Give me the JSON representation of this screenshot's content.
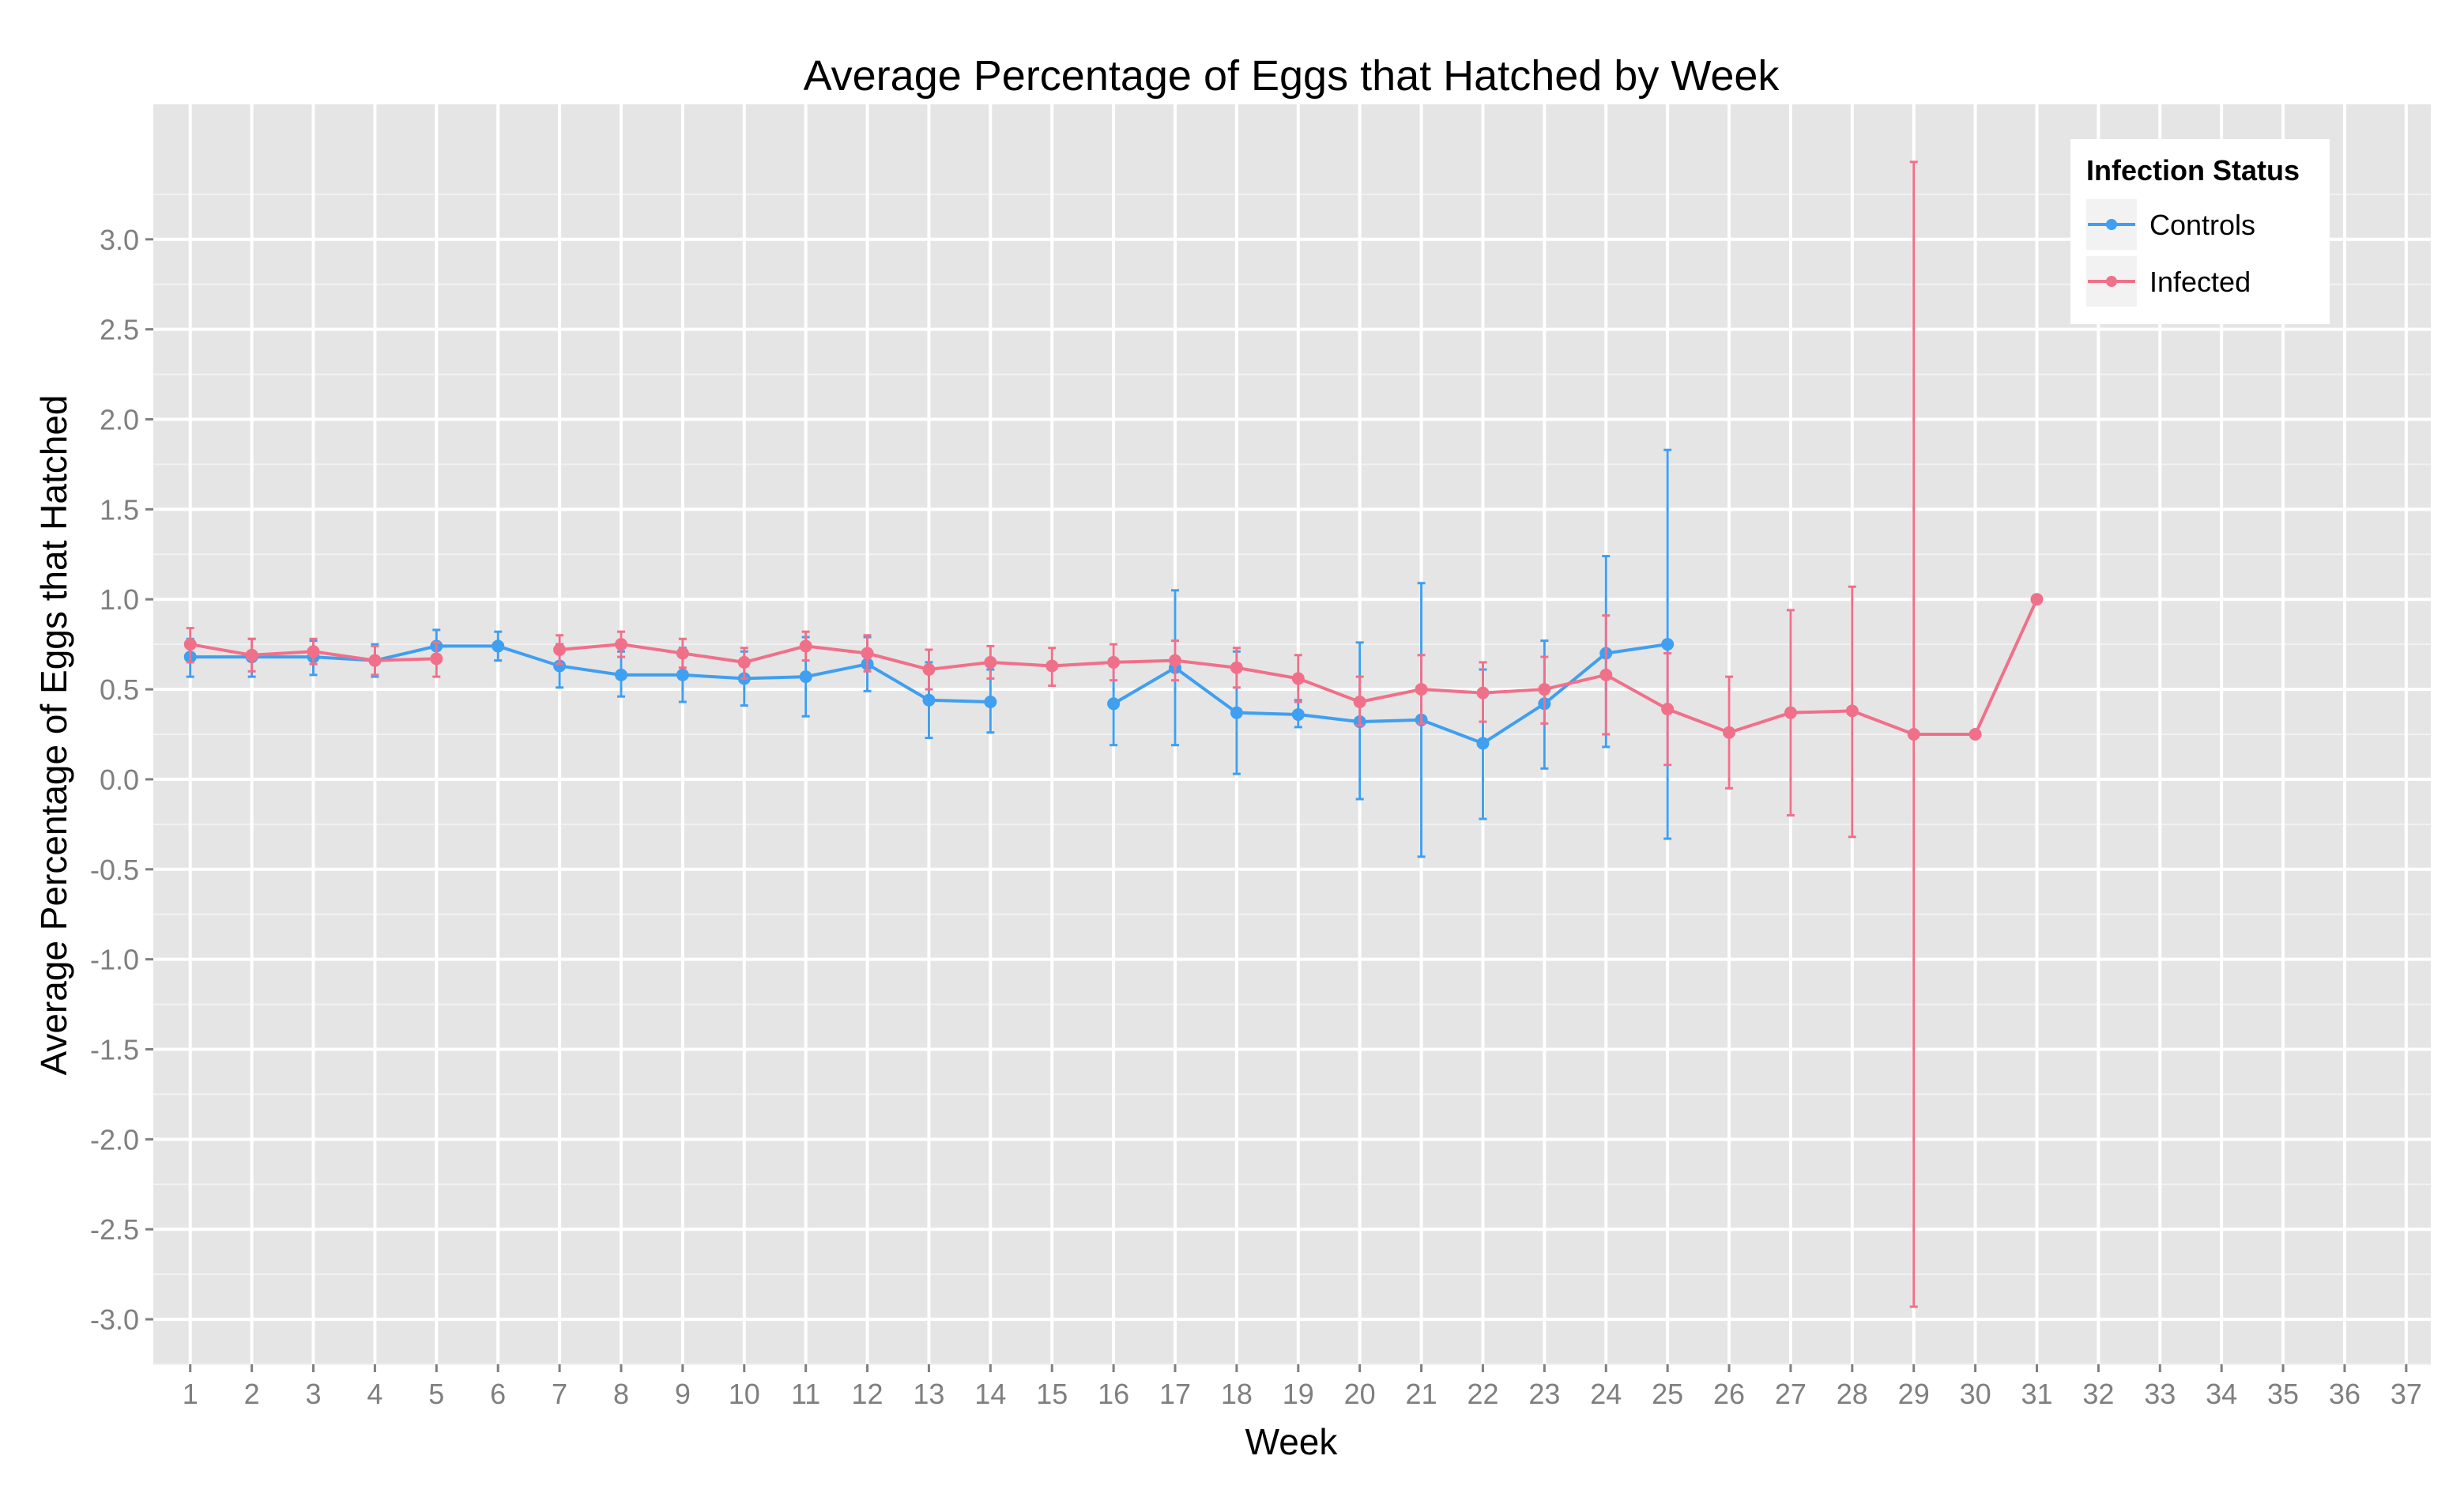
{
  "chart_data": {
    "type": "line",
    "title": "Average Percentage of Eggs that Hatched by Week",
    "xlabel": "Week",
    "ylabel": "Average Percentage of Eggs that Hatched",
    "x_ticks": [
      1,
      2,
      3,
      4,
      5,
      6,
      7,
      8,
      9,
      10,
      11,
      12,
      13,
      14,
      15,
      16,
      17,
      18,
      19,
      20,
      21,
      22,
      23,
      24,
      25,
      26,
      27,
      28,
      29,
      30,
      31,
      32,
      33,
      34,
      35,
      36,
      37
    ],
    "y_ticks": [
      -3.0,
      -2.5,
      -2.0,
      -1.5,
      -1.0,
      -0.5,
      0.0,
      0.5,
      1.0,
      1.5,
      2.0,
      2.5,
      3.0
    ],
    "y_tick_labels": [
      "-3.0",
      "-2.5",
      "-2.0",
      "-1.5",
      "-1.0",
      "-0.5",
      "0.0",
      "0.5",
      "1.0",
      "1.5",
      "2.0",
      "2.5",
      "3.0"
    ],
    "xlim": [
      0.4,
      37.4
    ],
    "ylim": [
      -3.25,
      3.75
    ],
    "grid": true,
    "legend": {
      "title": "Infection Status",
      "placement": "top-right",
      "entries": [
        "Controls",
        "Infected"
      ]
    },
    "colors": {
      "panel_background": "#e5e5e5",
      "grid": "#ffffff",
      "Controls": "#3f9ff0",
      "Infected": "#f0708a"
    },
    "series": [
      {
        "name": "Controls",
        "color": "#3f9ff0",
        "segments": [
          [
            {
              "x": 1,
              "y": 0.68,
              "lo": 0.57,
              "hi": 0.78
            },
            {
              "x": 2,
              "y": 0.68,
              "lo": 0.57,
              "hi": 0.78
            },
            {
              "x": 3,
              "y": 0.68,
              "lo": 0.58,
              "hi": 0.77
            },
            {
              "x": 4,
              "y": 0.66,
              "lo": 0.57,
              "hi": 0.75
            },
            {
              "x": 5,
              "y": 0.74,
              "lo": 0.65,
              "hi": 0.83
            },
            {
              "x": 6,
              "y": 0.74,
              "lo": 0.66,
              "hi": 0.82
            },
            {
              "x": 7,
              "y": 0.63,
              "lo": 0.51,
              "hi": 0.75
            },
            {
              "x": 8,
              "y": 0.58,
              "lo": 0.46,
              "hi": 0.71
            },
            {
              "x": 9,
              "y": 0.58,
              "lo": 0.43,
              "hi": 0.73
            },
            {
              "x": 10,
              "y": 0.56,
              "lo": 0.41,
              "hi": 0.71
            },
            {
              "x": 11,
              "y": 0.57,
              "lo": 0.35,
              "hi": 0.79
            },
            {
              "x": 12,
              "y": 0.64,
              "lo": 0.49,
              "hi": 0.79
            },
            {
              "x": 13,
              "y": 0.44,
              "lo": 0.23,
              "hi": 0.65
            },
            {
              "x": 14,
              "y": 0.43,
              "lo": 0.26,
              "hi": 0.61
            }
          ],
          [
            {
              "x": 16,
              "y": 0.42,
              "lo": 0.19,
              "hi": 0.66
            },
            {
              "x": 17,
              "y": 0.62,
              "lo": 0.19,
              "hi": 1.05
            },
            {
              "x": 18,
              "y": 0.37,
              "lo": 0.03,
              "hi": 0.71
            },
            {
              "x": 19,
              "y": 0.36,
              "lo": 0.29,
              "hi": 0.44
            },
            {
              "x": 20,
              "y": 0.32,
              "lo": -0.11,
              "hi": 0.76
            },
            {
              "x": 21,
              "y": 0.33,
              "lo": -0.43,
              "hi": 1.09
            },
            {
              "x": 22,
              "y": 0.2,
              "lo": -0.22,
              "hi": 0.61
            },
            {
              "x": 23,
              "y": 0.42,
              "lo": 0.06,
              "hi": 0.77
            },
            {
              "x": 24,
              "y": 0.7,
              "lo": 0.18,
              "hi": 1.24
            },
            {
              "x": 25,
              "y": 0.75,
              "lo": -0.33,
              "hi": 1.83
            }
          ]
        ]
      },
      {
        "name": "Infected",
        "color": "#f0708a",
        "segments": [
          [
            {
              "x": 1,
              "y": 0.75,
              "lo": 0.65,
              "hi": 0.84
            },
            {
              "x": 2,
              "y": 0.69,
              "lo": 0.6,
              "hi": 0.78
            },
            {
              "x": 3,
              "y": 0.71,
              "lo": 0.64,
              "hi": 0.78
            },
            {
              "x": 4,
              "y": 0.66,
              "lo": 0.58,
              "hi": 0.74
            },
            {
              "x": 5,
              "y": 0.67,
              "lo": 0.57,
              "hi": 0.76
            }
          ],
          [
            {
              "x": 7,
              "y": 0.72,
              "lo": 0.64,
              "hi": 0.8
            },
            {
              "x": 8,
              "y": 0.75,
              "lo": 0.68,
              "hi": 0.82
            },
            {
              "x": 9,
              "y": 0.7,
              "lo": 0.62,
              "hi": 0.78
            },
            {
              "x": 10,
              "y": 0.65,
              "lo": 0.56,
              "hi": 0.73
            },
            {
              "x": 11,
              "y": 0.74,
              "lo": 0.66,
              "hi": 0.82
            },
            {
              "x": 12,
              "y": 0.7,
              "lo": 0.6,
              "hi": 0.8
            },
            {
              "x": 13,
              "y": 0.61,
              "lo": 0.5,
              "hi": 0.72
            },
            {
              "x": 14,
              "y": 0.65,
              "lo": 0.56,
              "hi": 0.74
            },
            {
              "x": 15,
              "y": 0.63,
              "lo": 0.52,
              "hi": 0.73
            },
            {
              "x": 16,
              "y": 0.65,
              "lo": 0.55,
              "hi": 0.75
            },
            {
              "x": 17,
              "y": 0.66,
              "lo": 0.55,
              "hi": 0.77
            },
            {
              "x": 18,
              "y": 0.62,
              "lo": 0.51,
              "hi": 0.73
            },
            {
              "x": 19,
              "y": 0.56,
              "lo": 0.43,
              "hi": 0.69
            },
            {
              "x": 20,
              "y": 0.43,
              "lo": 0.3,
              "hi": 0.57
            },
            {
              "x": 21,
              "y": 0.5,
              "lo": 0.31,
              "hi": 0.69
            },
            {
              "x": 22,
              "y": 0.48,
              "lo": 0.32,
              "hi": 0.65
            },
            {
              "x": 23,
              "y": 0.5,
              "lo": 0.31,
              "hi": 0.68
            },
            {
              "x": 24,
              "y": 0.58,
              "lo": 0.25,
              "hi": 0.91
            },
            {
              "x": 25,
              "y": 0.39,
              "lo": 0.08,
              "hi": 0.7
            },
            {
              "x": 26,
              "y": 0.26,
              "lo": -0.05,
              "hi": 0.57
            },
            {
              "x": 27,
              "y": 0.37,
              "lo": -0.2,
              "hi": 0.94
            },
            {
              "x": 28,
              "y": 0.38,
              "lo": -0.32,
              "hi": 1.07
            },
            {
              "x": 29,
              "y": 0.25,
              "lo": -2.93,
              "hi": 3.43
            },
            {
              "x": 30,
              "y": 0.25,
              "lo": 0.25,
              "hi": 0.25
            },
            {
              "x": 31,
              "y": 1.0,
              "lo": 1.0,
              "hi": 1.0
            }
          ]
        ]
      }
    ]
  }
}
